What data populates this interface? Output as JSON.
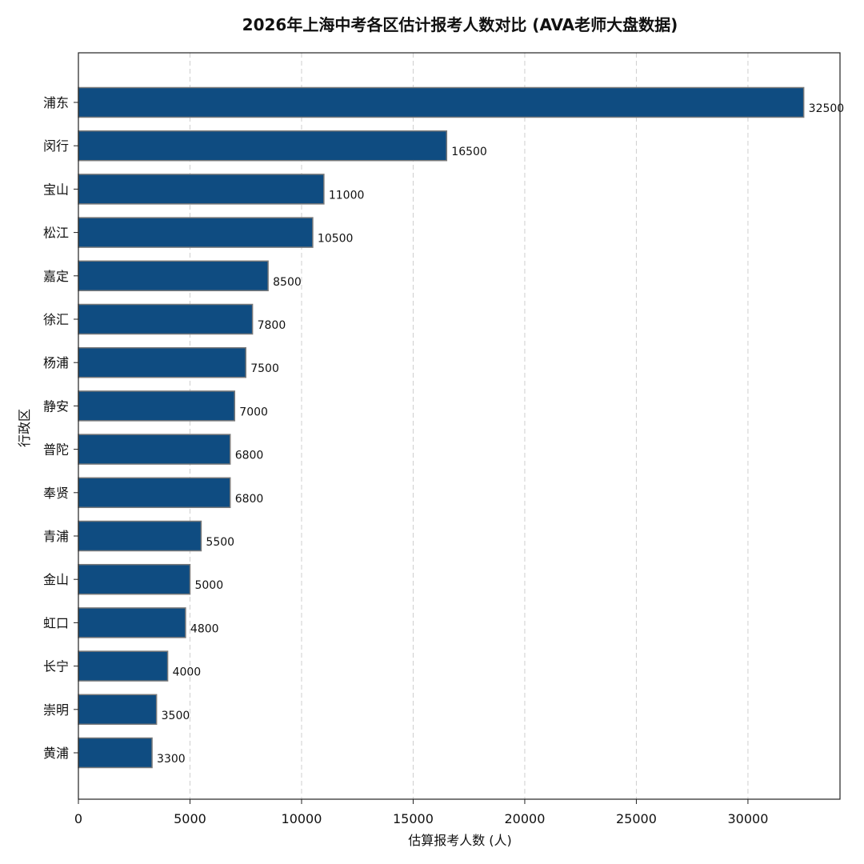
{
  "chart_data": {
    "type": "bar",
    "orientation": "horizontal",
    "title": "2026年上海中考各区估计报考人数对比 (AVA老师大盘数据)",
    "xlabel": "估算报考人数 (人)",
    "ylabel": "行政区",
    "categories": [
      "浦东",
      "闵行",
      "宝山",
      "松江",
      "嘉定",
      "徐汇",
      "杨浦",
      "静安",
      "普陀",
      "奉贤",
      "青浦",
      "金山",
      "虹口",
      "长宁",
      "崇明",
      "黄浦"
    ],
    "values": [
      32500,
      16500,
      11000,
      10500,
      8500,
      7800,
      7500,
      7000,
      6800,
      6800,
      5500,
      5000,
      4800,
      4000,
      3500,
      3300
    ],
    "data_labels": [
      "32500",
      "16500",
      "11000",
      "10500",
      "8500",
      "7800",
      "7500",
      "7000",
      "6800",
      "6800",
      "5500",
      "5000",
      "4800",
      "4000",
      "3500",
      "3300"
    ],
    "xticks": [
      0,
      5000,
      10000,
      15000,
      20000,
      25000,
      30000
    ],
    "xtick_labels": [
      "0",
      "5000",
      "10000",
      "15000",
      "20000",
      "25000",
      "30000"
    ],
    "xlim": [
      0,
      34125
    ],
    "grid": "x-dashed",
    "bar_color": "#0f4c81",
    "bar_edge_color": "#7a7a7a"
  }
}
